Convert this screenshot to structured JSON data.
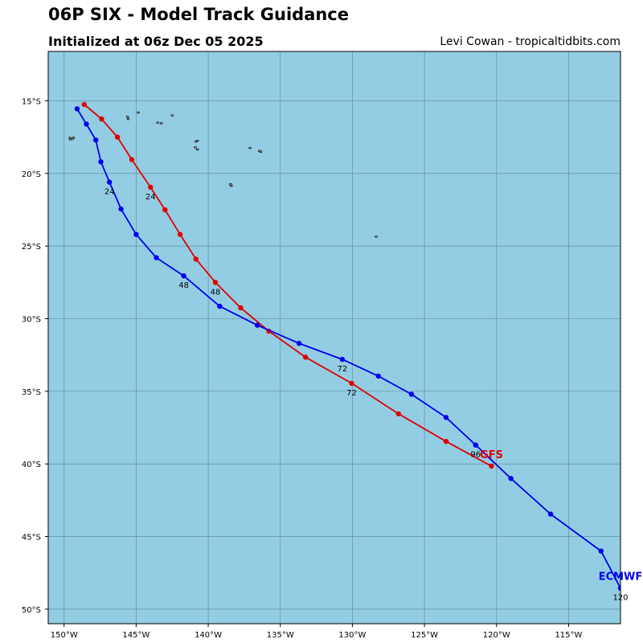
{
  "header": {
    "title": "06P SIX - Model Track Guidance",
    "subtitle": "Initialized at 06z Dec 05 2025",
    "credit": "Levi Cowan - tropicaltidbits.com"
  },
  "colors": {
    "ocean": "#93cde3",
    "grid": "#4d6f80",
    "frame": "#000000",
    "land": "#ffffff"
  },
  "map": {
    "lon_range": [
      -151.1,
      -111.4
    ],
    "lat_range": [
      -51.0,
      -11.6
    ],
    "lon_ticks": [
      {
        "value": -150,
        "label": "150°W"
      },
      {
        "value": -145,
        "label": "145°W"
      },
      {
        "value": -140,
        "label": "140°W"
      },
      {
        "value": -135,
        "label": "135°W"
      },
      {
        "value": -130,
        "label": "130°W"
      },
      {
        "value": -125,
        "label": "125°W"
      },
      {
        "value": -120,
        "label": "120°W"
      },
      {
        "value": -115,
        "label": "115°W"
      }
    ],
    "lat_ticks": [
      {
        "value": -15,
        "label": "15°S"
      },
      {
        "value": -20,
        "label": "20°S"
      },
      {
        "value": -25,
        "label": "25°S"
      },
      {
        "value": -30,
        "label": "30°S"
      },
      {
        "value": -35,
        "label": "35°S"
      },
      {
        "value": -40,
        "label": "40°S"
      },
      {
        "value": -45,
        "label": "45°S"
      },
      {
        "value": -50,
        "label": "50°S"
      }
    ],
    "islands": [
      [
        -149.6,
        -17.55
      ],
      [
        -149.35,
        -17.55
      ],
      [
        -149.4,
        -17.6
      ],
      [
        -149.55,
        -17.65
      ],
      [
        -144.85,
        -15.8
      ],
      [
        -145.6,
        -16.1
      ],
      [
        -145.55,
        -16.25
      ],
      [
        -143.5,
        -16.5
      ],
      [
        -143.25,
        -16.55
      ],
      [
        -142.5,
        -16.0
      ],
      [
        -140.85,
        -17.8
      ],
      [
        -140.75,
        -17.75
      ],
      [
        -140.9,
        -18.2
      ],
      [
        -140.75,
        -18.35
      ],
      [
        -137.1,
        -18.25
      ],
      [
        -136.45,
        -18.45
      ],
      [
        -136.35,
        -18.5
      ],
      [
        -138.45,
        -20.75
      ],
      [
        -138.4,
        -20.85
      ],
      [
        -128.35,
        -24.35
      ]
    ]
  },
  "chart_data": {
    "type": "map-track",
    "series": [
      {
        "name": "GFS",
        "color": "#e00000",
        "points": [
          [
            -148.6,
            -15.25
          ],
          [
            -147.4,
            -16.25
          ],
          [
            -146.3,
            -17.5
          ],
          [
            -145.3,
            -19.05
          ],
          [
            -144.0,
            -20.95
          ],
          [
            -143.0,
            -22.5
          ],
          [
            -141.95,
            -24.2
          ],
          [
            -140.85,
            -25.9
          ],
          [
            -139.5,
            -27.5
          ],
          [
            -137.75,
            -29.25
          ],
          [
            -135.8,
            -30.85
          ],
          [
            -133.25,
            -32.65
          ],
          [
            -130.05,
            -34.45
          ],
          [
            -126.8,
            -36.55
          ],
          [
            -123.5,
            -38.45
          ],
          [
            -120.35,
            -40.15
          ]
        ],
        "time_labels": [
          {
            "index": 4,
            "text": "24"
          },
          {
            "index": 8,
            "text": "48"
          },
          {
            "index": 12,
            "text": "72"
          }
        ]
      },
      {
        "name": "ECMWF",
        "color": "#0000ee",
        "points": [
          [
            -149.1,
            -15.55
          ],
          [
            -148.45,
            -16.6
          ],
          [
            -147.8,
            -17.7
          ],
          [
            -147.45,
            -19.2
          ],
          [
            -146.85,
            -20.6
          ],
          [
            -146.05,
            -22.45
          ],
          [
            -145.0,
            -24.2
          ],
          [
            -143.6,
            -25.8
          ],
          [
            -141.7,
            -27.05
          ],
          [
            -139.2,
            -29.15
          ],
          [
            -136.6,
            -30.45
          ],
          [
            -133.7,
            -31.7
          ],
          [
            -130.7,
            -32.8
          ],
          [
            -128.2,
            -33.95
          ],
          [
            -125.9,
            -35.2
          ],
          [
            -123.5,
            -36.8
          ],
          [
            -121.45,
            -38.7
          ],
          [
            -119.0,
            -41.0
          ],
          [
            -116.25,
            -43.45
          ],
          [
            -112.75,
            -46.0
          ],
          [
            -111.4,
            -48.55
          ]
        ],
        "time_labels": [
          {
            "index": 4,
            "text": "24"
          },
          {
            "index": 8,
            "text": "48"
          },
          {
            "index": 12,
            "text": "72"
          },
          {
            "index": 16,
            "text": "96"
          },
          {
            "index": 20,
            "text": "120"
          }
        ]
      }
    ]
  }
}
